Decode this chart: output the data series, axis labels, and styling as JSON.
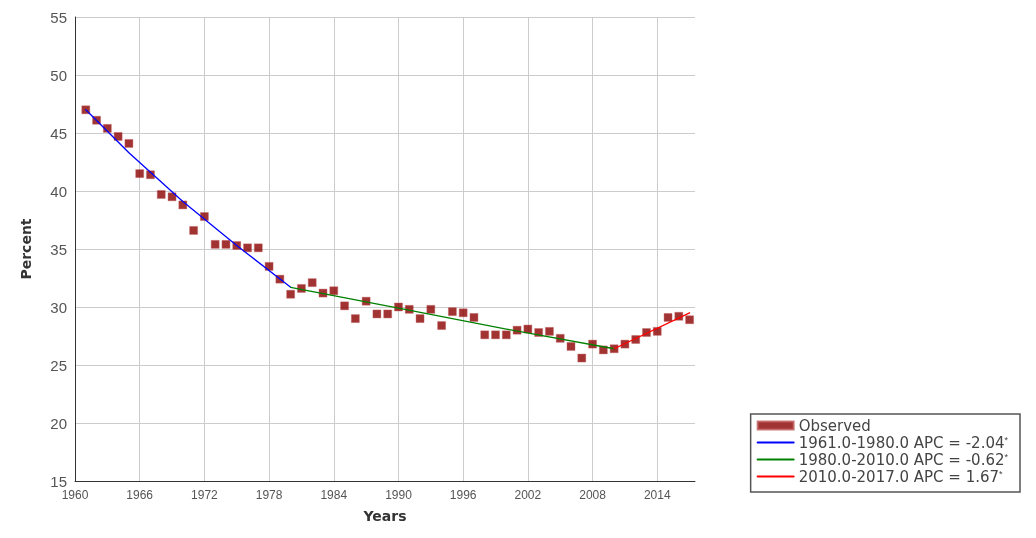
{
  "chart_data": {
    "type": "scatter",
    "xlabel": "Years",
    "ylabel": "Percent",
    "xlim": [
      1960,
      2017.5
    ],
    "xticks": [
      1960,
      1966,
      1972,
      1978,
      1984,
      1990,
      1996,
      2002,
      2008,
      2014
    ],
    "ylim": [
      15,
      55
    ],
    "yticks": [
      15,
      20,
      25,
      30,
      35,
      40,
      45,
      50,
      55
    ],
    "grid": true,
    "legend": "bottom right",
    "series": [
      {
        "name": "Observed",
        "marker": "square",
        "color": "#8b0000",
        "x": [
          1961,
          1962,
          1963,
          1964,
          1965,
          1966,
          1967,
          1968,
          1969,
          1970,
          1971,
          1972,
          1973,
          1974,
          1975,
          1976,
          1977,
          1978,
          1979,
          1980,
          1981,
          1982,
          1983,
          1984,
          1985,
          1986,
          1987,
          1988,
          1989,
          1990,
          1991,
          1992,
          1993,
          1994,
          1995,
          1996,
          1997,
          1998,
          1999,
          2000,
          2001,
          2002,
          2003,
          2004,
          2005,
          2006,
          2007,
          2008,
          2009,
          2010,
          2011,
          2012,
          2013,
          2014,
          2015,
          2016,
          2017
        ],
        "values": [
          47.0,
          46.1,
          45.4,
          44.7,
          44.1,
          41.5,
          41.4,
          39.7,
          39.5,
          38.8,
          36.6,
          37.8,
          35.4,
          35.4,
          35.3,
          35.1,
          35.1,
          33.5,
          32.4,
          31.1,
          31.6,
          32.1,
          31.2,
          31.4,
          30.1,
          29.0,
          30.5,
          29.4,
          29.4,
          30.0,
          29.8,
          29.0,
          29.8,
          28.4,
          29.6,
          29.5,
          29.1,
          27.6,
          27.6,
          27.6,
          28.0,
          28.1,
          27.8,
          27.9,
          27.3,
          26.6,
          25.6,
          26.8,
          26.3,
          26.4,
          26.8,
          27.2,
          27.8,
          27.9,
          29.1,
          29.2,
          28.9
        ]
      },
      {
        "name": "1961.0-1980.0 APC = -2.04$^{*}$",
        "type": "line",
        "marker": "none",
        "line_style": "solid",
        "color": "#0000ff",
        "x": [
          1961,
          1965,
          1970,
          1975,
          1980
        ],
        "values": [
          47.0,
          43.3,
          39.1,
          35.3,
          31.7
        ]
      },
      {
        "name": "1980.0-2010.0 APC = -0.62$^{*}$",
        "type": "line",
        "marker": "none",
        "line_style": "solid",
        "color": "#008000",
        "x": [
          1980,
          1990,
          2000,
          2010
        ],
        "values": [
          31.7,
          29.9,
          28.1,
          26.4
        ]
      },
      {
        "name": "2010.0-2017.0 APC = 1.67$^{*}$",
        "type": "line",
        "marker": "none",
        "line_style": "solid",
        "color": "#ff0000",
        "x": [
          2010,
          2017
        ],
        "values": [
          26.4,
          29.5
        ]
      }
    ]
  }
}
